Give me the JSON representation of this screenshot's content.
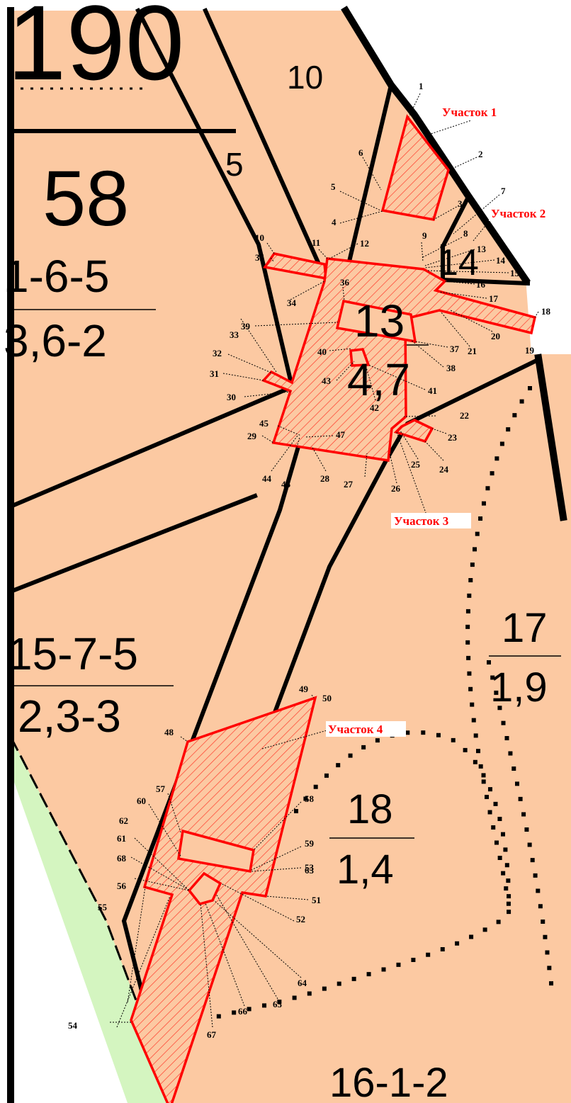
{
  "map": {
    "colors": {
      "parcel_fill": "#fcc9a2",
      "plot_outline": "#ff0000",
      "boundary": "#000000",
      "green_strip": "#d4f5c0",
      "background": "#ffffff"
    },
    "compartment_labels": {
      "c190": "190",
      "c10": "10",
      "c5": "5",
      "c58": "58",
      "c14": "14",
      "c17": "17"
    },
    "stand_labels": [
      {
        "num": "1-6-5",
        "den": "3,6-2"
      },
      {
        "num": "13",
        "den": "4,7"
      },
      {
        "num": "15-7-5",
        "den": "2,3-3"
      },
      {
        "num": "17",
        "den": "1,9"
      },
      {
        "num": "18",
        "den": "1,4"
      }
    ],
    "bottom_label": "16-1-2",
    "plots": [
      {
        "name": "Участок 1"
      },
      {
        "name": "Участок 2"
      },
      {
        "name": "Участок 3"
      },
      {
        "name": "Участок 4"
      }
    ],
    "points": [
      "1",
      "2",
      "3",
      "4",
      "5",
      "6",
      "7",
      "8",
      "9",
      "10",
      "11",
      "12",
      "13",
      "14",
      "15",
      "16",
      "17",
      "18",
      "19",
      "20",
      "21",
      "22",
      "23",
      "24",
      "25",
      "26",
      "27",
      "28",
      "29",
      "30",
      "31",
      "32",
      "33",
      "34",
      "35",
      "36",
      "37",
      "38",
      "39",
      "40",
      "41",
      "42",
      "43",
      "44",
      "45",
      "46",
      "47",
      "48",
      "49",
      "50",
      "51",
      "52",
      "53",
      "54",
      "55",
      "56",
      "57",
      "58",
      "59",
      "60",
      "61",
      "62",
      "63",
      "64",
      "65",
      "66",
      "67",
      "68"
    ]
  }
}
